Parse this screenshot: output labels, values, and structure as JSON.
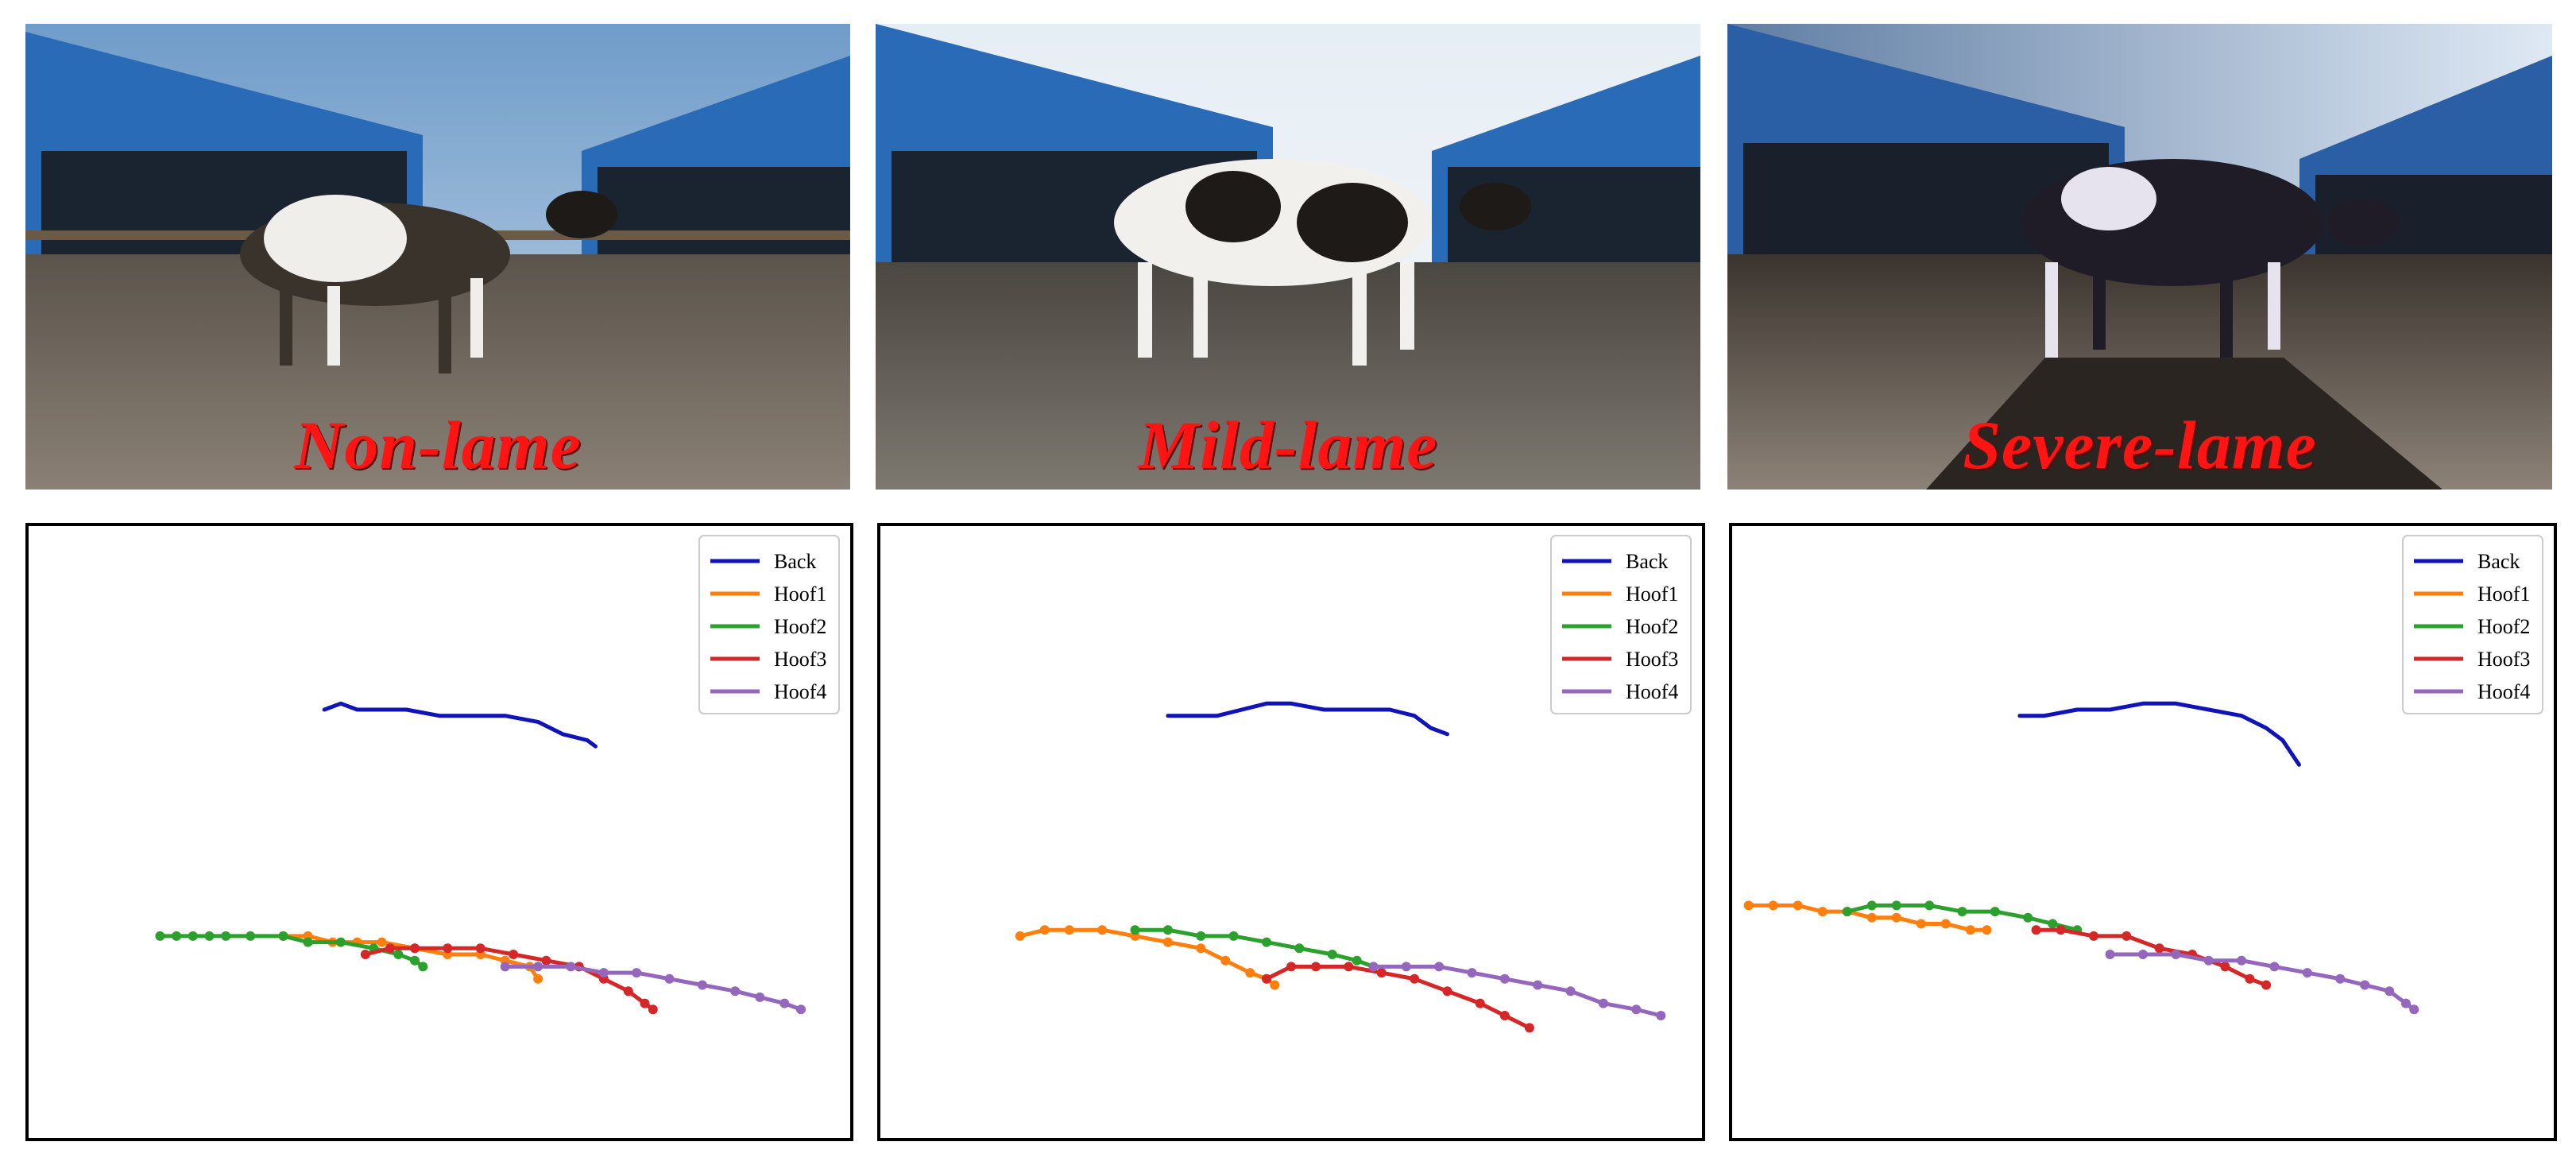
{
  "panels": [
    {
      "caption": "Non-lame",
      "photo_icon": "cow-photo-icon",
      "chart_data": {
        "type": "line",
        "legend": {
          "placement": "top-right",
          "entries": [
            "Back",
            "Hoof1",
            "Hoof2",
            "Hoof3",
            "Hoof4"
          ]
        },
        "grid": false,
        "ylim": [
          0,
          1
        ],
        "xlim": [
          0,
          1
        ],
        "series": [
          {
            "name": "Back",
            "color": "#1014b8",
            "markers": false,
            "x": [
              0.36,
              0.38,
              0.4,
              0.42,
              0.46,
              0.5,
              0.54,
              0.58,
              0.62,
              0.65,
              0.68,
              0.69
            ],
            "y": [
              0.7,
              0.71,
              0.7,
              0.7,
              0.7,
              0.69,
              0.69,
              0.69,
              0.68,
              0.66,
              0.65,
              0.64
            ]
          },
          {
            "name": "Hoof1",
            "color": "#ff7f0e",
            "markers": true,
            "x": [
              0.31,
              0.34,
              0.37,
              0.4,
              0.43,
              0.47,
              0.51,
              0.55,
              0.58,
              0.61,
              0.62
            ],
            "y": [
              0.33,
              0.33,
              0.32,
              0.32,
              0.32,
              0.31,
              0.3,
              0.3,
              0.29,
              0.28,
              0.26
            ]
          },
          {
            "name": "Hoof2",
            "color": "#2ca02c",
            "markers": true,
            "x": [
              0.16,
              0.18,
              0.2,
              0.22,
              0.24,
              0.27,
              0.31,
              0.34,
              0.38,
              0.42,
              0.45,
              0.47,
              0.48
            ],
            "y": [
              0.33,
              0.33,
              0.33,
              0.33,
              0.33,
              0.33,
              0.33,
              0.32,
              0.32,
              0.31,
              0.3,
              0.29,
              0.28
            ]
          },
          {
            "name": "Hoof3",
            "color": "#d62728",
            "markers": true,
            "x": [
              0.41,
              0.44,
              0.47,
              0.51,
              0.55,
              0.59,
              0.63,
              0.67,
              0.7,
              0.73,
              0.75,
              0.76
            ],
            "y": [
              0.3,
              0.31,
              0.31,
              0.31,
              0.31,
              0.3,
              0.29,
              0.28,
              0.26,
              0.24,
              0.22,
              0.21
            ]
          },
          {
            "name": "Hoof4",
            "color": "#9467bd",
            "markers": true,
            "x": [
              0.58,
              0.62,
              0.66,
              0.7,
              0.74,
              0.78,
              0.82,
              0.86,
              0.89,
              0.92,
              0.94
            ],
            "y": [
              0.28,
              0.28,
              0.28,
              0.27,
              0.27,
              0.26,
              0.25,
              0.24,
              0.23,
              0.22,
              0.21
            ]
          }
        ]
      }
    },
    {
      "caption": "Mild-lame",
      "photo_icon": "cow-photo-icon",
      "chart_data": {
        "type": "line",
        "legend": {
          "placement": "top-right",
          "entries": [
            "Back",
            "Hoof1",
            "Hoof2",
            "Hoof3",
            "Hoof4"
          ]
        },
        "grid": false,
        "ylim": [
          0,
          1
        ],
        "xlim": [
          0,
          1
        ],
        "series": [
          {
            "name": "Back",
            "color": "#1014b8",
            "markers": false,
            "x": [
              0.35,
              0.38,
              0.41,
              0.44,
              0.47,
              0.5,
              0.54,
              0.58,
              0.62,
              0.65,
              0.67,
              0.69
            ],
            "y": [
              0.69,
              0.69,
              0.69,
              0.7,
              0.71,
              0.71,
              0.7,
              0.7,
              0.7,
              0.69,
              0.67,
              0.66
            ]
          },
          {
            "name": "Hoof1",
            "color": "#ff7f0e",
            "markers": true,
            "x": [
              0.17,
              0.2,
              0.23,
              0.27,
              0.31,
              0.35,
              0.39,
              0.42,
              0.45,
              0.47,
              0.48
            ],
            "y": [
              0.33,
              0.34,
              0.34,
              0.34,
              0.33,
              0.32,
              0.31,
              0.29,
              0.27,
              0.26,
              0.25
            ]
          },
          {
            "name": "Hoof2",
            "color": "#2ca02c",
            "markers": true,
            "x": [
              0.31,
              0.35,
              0.39,
              0.43,
              0.47,
              0.51,
              0.55,
              0.58,
              0.6
            ],
            "y": [
              0.34,
              0.34,
              0.33,
              0.33,
              0.32,
              0.31,
              0.3,
              0.29,
              0.28
            ]
          },
          {
            "name": "Hoof3",
            "color": "#d62728",
            "markers": true,
            "x": [
              0.47,
              0.5,
              0.53,
              0.57,
              0.61,
              0.65,
              0.69,
              0.73,
              0.76,
              0.79
            ],
            "y": [
              0.26,
              0.28,
              0.28,
              0.28,
              0.27,
              0.26,
              0.24,
              0.22,
              0.2,
              0.18
            ]
          },
          {
            "name": "Hoof4",
            "color": "#9467bd",
            "markers": true,
            "x": [
              0.6,
              0.64,
              0.68,
              0.72,
              0.76,
              0.8,
              0.84,
              0.88,
              0.92,
              0.95
            ],
            "y": [
              0.28,
              0.28,
              0.28,
              0.27,
              0.26,
              0.25,
              0.24,
              0.22,
              0.21,
              0.2
            ]
          }
        ]
      }
    },
    {
      "caption": "Severe-lame",
      "photo_icon": "cow-photo-icon",
      "chart_data": {
        "type": "line",
        "legend": {
          "placement": "top-right",
          "entries": [
            "Back",
            "Hoof1",
            "Hoof2",
            "Hoof3",
            "Hoof4"
          ]
        },
        "grid": false,
        "ylim": [
          0,
          1
        ],
        "xlim": [
          0,
          1
        ],
        "series": [
          {
            "name": "Back",
            "color": "#1014b8",
            "markers": false,
            "x": [
              0.35,
              0.38,
              0.42,
              0.46,
              0.5,
              0.54,
              0.58,
              0.62,
              0.65,
              0.67,
              0.68,
              0.69
            ],
            "y": [
              0.69,
              0.69,
              0.7,
              0.7,
              0.71,
              0.71,
              0.7,
              0.69,
              0.67,
              0.65,
              0.63,
              0.61
            ]
          },
          {
            "name": "Hoof1",
            "color": "#ff7f0e",
            "markers": true,
            "x": [
              0.02,
              0.05,
              0.08,
              0.11,
              0.14,
              0.17,
              0.2,
              0.23,
              0.26,
              0.29,
              0.31
            ],
            "y": [
              0.38,
              0.38,
              0.38,
              0.37,
              0.37,
              0.36,
              0.36,
              0.35,
              0.35,
              0.34,
              0.34
            ]
          },
          {
            "name": "Hoof2",
            "color": "#2ca02c",
            "markers": true,
            "x": [
              0.14,
              0.17,
              0.2,
              0.24,
              0.28,
              0.32,
              0.36,
              0.39,
              0.42
            ],
            "y": [
              0.37,
              0.38,
              0.38,
              0.38,
              0.37,
              0.37,
              0.36,
              0.35,
              0.34
            ]
          },
          {
            "name": "Hoof3",
            "color": "#d62728",
            "markers": true,
            "x": [
              0.37,
              0.4,
              0.44,
              0.48,
              0.52,
              0.56,
              0.6,
              0.63,
              0.65
            ],
            "y": [
              0.34,
              0.34,
              0.33,
              0.33,
              0.31,
              0.3,
              0.28,
              0.26,
              0.25
            ]
          },
          {
            "name": "Hoof4",
            "color": "#9467bd",
            "markers": true,
            "x": [
              0.46,
              0.5,
              0.54,
              0.58,
              0.62,
              0.66,
              0.7,
              0.74,
              0.77,
              0.8,
              0.82,
              0.83
            ],
            "y": [
              0.3,
              0.3,
              0.3,
              0.29,
              0.29,
              0.28,
              0.27,
              0.26,
              0.25,
              0.24,
              0.22,
              0.21
            ]
          }
        ]
      }
    }
  ]
}
